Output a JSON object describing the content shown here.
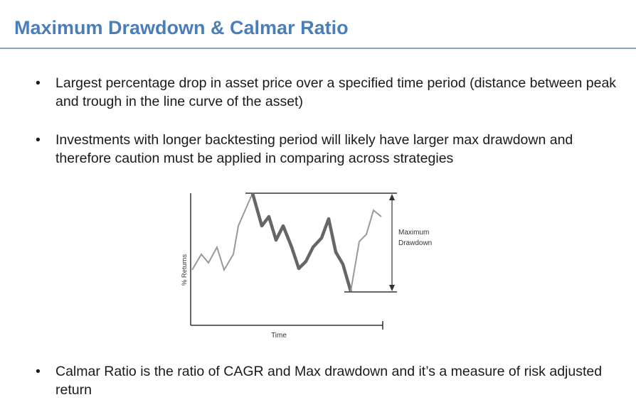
{
  "header": {
    "title": "Maximum Drawdown & Calmar Ratio"
  },
  "bullets": [
    "Largest percentage drop in asset price over a specified time period (distance between peak and trough in the line curve of the asset)",
    "Investments with longer backtesting period will likely have larger max drawdown and therefore caution must be applied in comparing across strategies",
    "Calmar Ratio is the ratio of CAGR and Max drawdown and it’s a measure of risk adjusted return"
  ],
  "diagram": {
    "y_label": "% Returns",
    "x_label": "Time",
    "annotation": [
      "Maximum",
      "Drawdown"
    ]
  }
}
